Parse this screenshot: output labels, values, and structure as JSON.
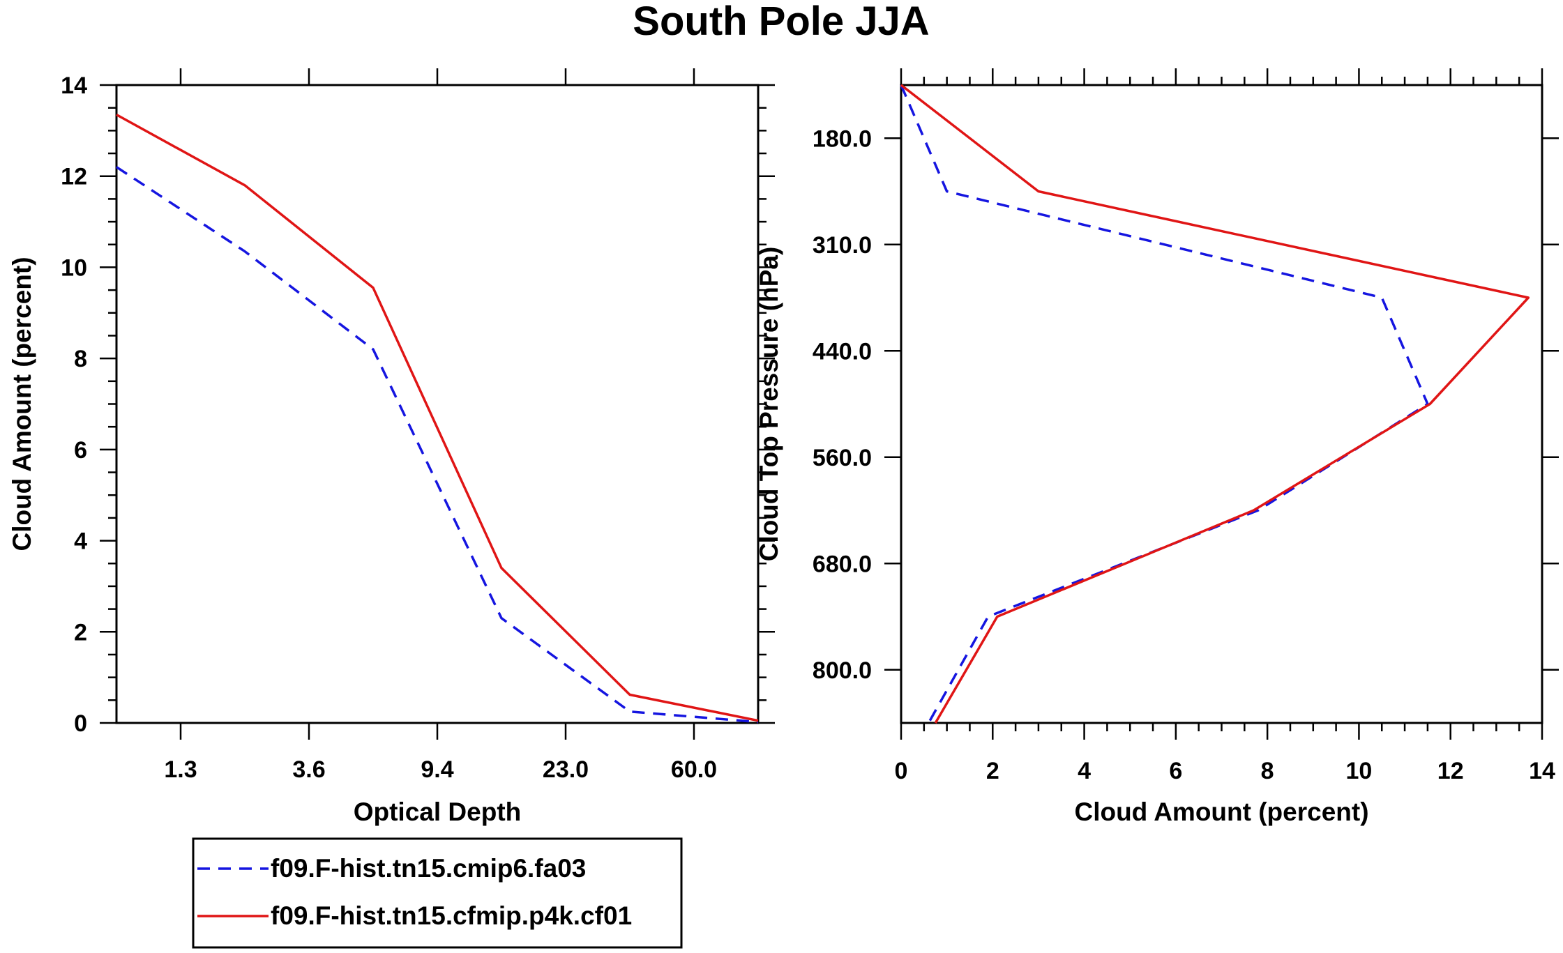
{
  "title": "South Pole JJA",
  "legend": {
    "position": "bottom-left",
    "entries": [
      {
        "label": "f09.F-hist.tn15.cmip6.fa03",
        "color": "#1515e0",
        "dash": "dashed"
      },
      {
        "label": "f09.F-hist.tn15.cfmip.p4k.cf01",
        "color": "#e01515",
        "dash": "solid"
      }
    ]
  },
  "chart_data": [
    {
      "type": "line",
      "title": "",
      "xlabel": "Optical Depth",
      "ylabel": "Cloud Amount (percent)",
      "x_categories": [
        "1.3",
        "3.6",
        "9.4",
        "23.0",
        "60.0"
      ],
      "x": [
        0.5,
        2.5,
        4.5,
        6.5,
        8.5,
        10.5
      ],
      "xlim": [
        0.5,
        10.5
      ],
      "ylim": [
        0,
        14
      ],
      "yticks": [
        0,
        2,
        4,
        6,
        8,
        10,
        12,
        14
      ],
      "grid": false,
      "series": [
        {
          "name": "f09.F-hist.tn15.cmip6.fa03",
          "values": [
            12.2,
            10.35,
            8.2,
            2.3,
            0.25,
            0.02
          ]
        },
        {
          "name": "f09.F-hist.tn15.cfmip.p4k.cf01",
          "values": [
            13.35,
            11.8,
            9.55,
            3.4,
            0.62,
            0.05
          ]
        }
      ]
    },
    {
      "type": "line",
      "title": "",
      "xlabel": "Cloud Amount (percent)",
      "ylabel": "Cloud Top Pressure (hPa)",
      "xlim": [
        0,
        14
      ],
      "xticks": [
        0,
        2,
        4,
        6,
        8,
        10,
        12,
        14
      ],
      "y_tick_labels": [
        "180.0",
        "310.0",
        "440.0",
        "560.0",
        "680.0",
        "800.0"
      ],
      "y": [
        0,
        1,
        2,
        3,
        4,
        5,
        6
      ],
      "y_note": "pressure bin index, 0 = top of plot",
      "grid": false,
      "series": [
        {
          "name": "f09.F-hist.tn15.cmip6.fa03",
          "values": [
            0.0,
            1.0,
            10.5,
            11.5,
            7.8,
            1.9,
            0.6
          ]
        },
        {
          "name": "f09.F-hist.tn15.cfmip.p4k.cf01",
          "values": [
            0.0,
            3.0,
            13.7,
            11.55,
            7.7,
            2.1,
            0.75
          ]
        }
      ]
    }
  ]
}
